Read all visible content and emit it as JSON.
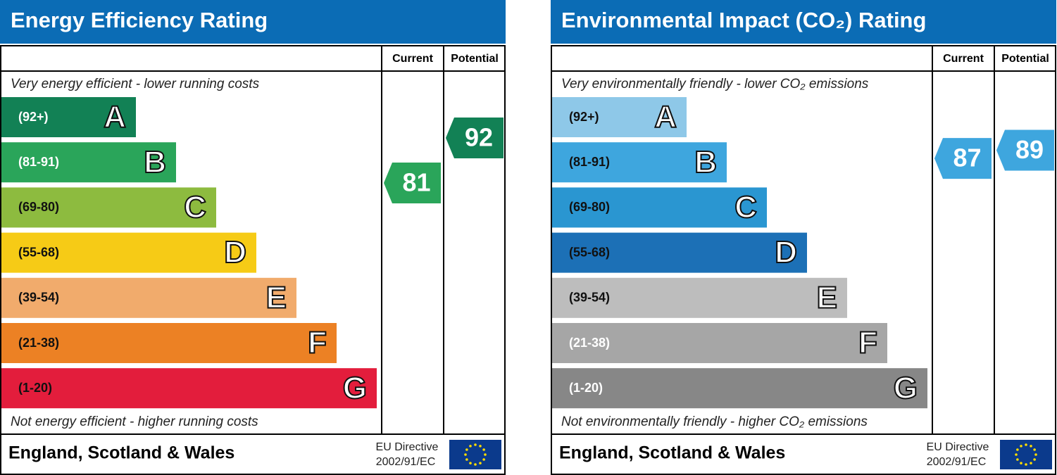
{
  "panels": [
    {
      "title": "Energy Efficiency Rating",
      "col_current": "Current",
      "col_potential": "Potential",
      "top_note": "Very energy efficient - lower running costs",
      "bottom_note": "Not energy efficient - higher running costs",
      "bands": [
        {
          "range": "(92+)",
          "letter": "A",
          "color": "#128155",
          "text_color": "#ffffff"
        },
        {
          "range": "(81-91)",
          "letter": "B",
          "color": "#2aa55a",
          "text_color": "#ffffff"
        },
        {
          "range": "(69-80)",
          "letter": "C",
          "color": "#8dbb3f",
          "text_color": "#111111"
        },
        {
          "range": "(55-68)",
          "letter": "D",
          "color": "#f6cb16",
          "text_color": "#111111"
        },
        {
          "range": "(39-54)",
          "letter": "E",
          "color": "#f1ab6c",
          "text_color": "#111111"
        },
        {
          "range": "(21-38)",
          "letter": "F",
          "color": "#ec8124",
          "text_color": "#111111"
        },
        {
          "range": "(1-20)",
          "letter": "G",
          "color": "#e31d3c",
          "text_color": "#111111"
        }
      ],
      "current": 81,
      "potential": 92,
      "footer": "England, Scotland & Wales",
      "directive": "EU Directive",
      "directive_code": "2002/91/EC"
    },
    {
      "title": "Environmental Impact (CO₂) Rating",
      "col_current": "Current",
      "col_potential": "Potential",
      "top_note": "Very environmentally friendly - lower CO₂ emissions",
      "bottom_note": "Not environmentally friendly - higher CO₂ emissions",
      "bands": [
        {
          "range": "(92+)",
          "letter": "A",
          "color": "#8ec8e8",
          "text_color": "#111111"
        },
        {
          "range": "(81-91)",
          "letter": "B",
          "color": "#3ea6de",
          "text_color": "#111111"
        },
        {
          "range": "(69-80)",
          "letter": "C",
          "color": "#2a96d1",
          "text_color": "#111111"
        },
        {
          "range": "(55-68)",
          "letter": "D",
          "color": "#1c70b6",
          "text_color": "#111111"
        },
        {
          "range": "(39-54)",
          "letter": "E",
          "color": "#bdbdbd",
          "text_color": "#111111"
        },
        {
          "range": "(21-38)",
          "letter": "F",
          "color": "#a6a6a6",
          "text_color": "#ffffff"
        },
        {
          "range": "(1-20)",
          "letter": "G",
          "color": "#878787",
          "text_color": "#ffffff"
        }
      ],
      "current": 87,
      "potential": 89,
      "footer": "England, Scotland & Wales",
      "directive": "EU Directive",
      "directive_code": "2002/91/EC"
    }
  ]
}
